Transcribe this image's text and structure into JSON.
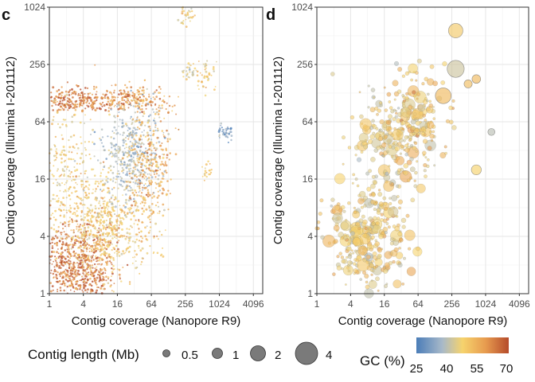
{
  "panel_labels": [
    "c",
    "d"
  ],
  "legend": {
    "size_title": "Contig length (Mb)",
    "size_labels": [
      "0.5",
      "1",
      "2",
      "4"
    ],
    "color_title": "GC (%)",
    "color_labels": [
      "25",
      "40",
      "55",
      "70"
    ],
    "gradient_colors": [
      "#4b7db8",
      "#a8b9c9",
      "#f6d36d",
      "#e79b4f",
      "#b54b2b"
    ]
  },
  "chart_data": [
    {
      "type": "scatter",
      "panel": "c",
      "xlabel": "Contig coverage (Nanopore R9)",
      "ylabel": "Contig coverage (Illumina I-201112)",
      "x_scale": "log2",
      "y_scale": "log2",
      "xlim": [
        1,
        6000
      ],
      "ylim": [
        1,
        1024
      ],
      "x_ticks": [
        "1",
        "4",
        "16",
        "64",
        "256",
        "1024",
        "4096"
      ],
      "y_ticks": [
        "1",
        "4",
        "16",
        "64",
        "256",
        "1024"
      ],
      "grid": true,
      "clusters": [
        {
          "x": 3,
          "y": 110,
          "spread_x": 1.6,
          "spread_y": 0.25,
          "gc": 65,
          "n": 260
        },
        {
          "x": 30,
          "y": 110,
          "spread_x": 1.2,
          "spread_y": 0.25,
          "gc": 60,
          "n": 200
        },
        {
          "x": 3,
          "y": 2,
          "spread_x": 1.2,
          "spread_y": 0.8,
          "gc": 66,
          "n": 700
        },
        {
          "x": 10,
          "y": 5,
          "spread_x": 1.4,
          "spread_y": 1.0,
          "gc": 52,
          "n": 650
        },
        {
          "x": 30,
          "y": 30,
          "spread_x": 1.0,
          "spread_y": 1.0,
          "gc": 38,
          "n": 450
        },
        {
          "x": 60,
          "y": 20,
          "spread_x": 0.8,
          "spread_y": 1.2,
          "gc": 58,
          "n": 300
        },
        {
          "x": 2,
          "y": 20,
          "spread_x": 1.0,
          "spread_y": 1.4,
          "gc": 50,
          "n": 250
        },
        {
          "x": 250,
          "y": 900,
          "spread_x": 0.3,
          "spread_y": 0.3,
          "gc": 50,
          "n": 40
        },
        {
          "x": 300,
          "y": 220,
          "spread_x": 0.2,
          "spread_y": 0.2,
          "gc": 44,
          "n": 30
        },
        {
          "x": 1300,
          "y": 50,
          "spread_x": 0.2,
          "spread_y": 0.2,
          "gc": 32,
          "n": 40
        },
        {
          "x": 600,
          "y": 20,
          "spread_x": 0.2,
          "spread_y": 0.2,
          "gc": 50,
          "n": 20
        },
        {
          "x": 600,
          "y": 200,
          "spread_x": 0.3,
          "spread_y": 0.4,
          "gc": 52,
          "n": 40
        }
      ]
    },
    {
      "type": "scatter",
      "panel": "d",
      "xlabel": "Contig coverage (Nanopore R9)",
      "ylabel": "Contig coverage (Illumina I-201112)",
      "x_scale": "log2",
      "y_scale": "log2",
      "xlim": [
        1,
        6000
      ],
      "ylim": [
        1,
        1024
      ],
      "x_ticks": [
        "1",
        "4",
        "16",
        "64",
        "256",
        "1024",
        "4096"
      ],
      "y_ticks": [
        "1",
        "4",
        "16",
        "64",
        "256",
        "1024"
      ],
      "grid": true,
      "highlighted_points": [
        {
          "x": 300,
          "y": 580,
          "length_mb": 2.5,
          "gc": 52
        },
        {
          "x": 300,
          "y": 230,
          "length_mb": 3.5,
          "gc": 43
        },
        {
          "x": 180,
          "y": 120,
          "length_mb": 3.0,
          "gc": 55
        },
        {
          "x": 700,
          "y": 20,
          "length_mb": 1.2,
          "gc": 50
        },
        {
          "x": 700,
          "y": 180,
          "length_mb": 0.9,
          "gc": 55
        },
        {
          "x": 1300,
          "y": 50,
          "length_mb": 0.6,
          "gc": 40
        },
        {
          "x": 500,
          "y": 160,
          "length_mb": 0.8,
          "gc": 54
        }
      ],
      "clusters": [
        {
          "x": 8,
          "y": 4,
          "spread_x": 1.3,
          "spread_y": 1.0,
          "gc": 50,
          "n": 330
        },
        {
          "x": 20,
          "y": 40,
          "spread_x": 1.3,
          "spread_y": 1.1,
          "gc": 48,
          "n": 220
        },
        {
          "x": 60,
          "y": 80,
          "spread_x": 1.0,
          "spread_y": 0.9,
          "gc": 52,
          "n": 120
        }
      ]
    }
  ]
}
